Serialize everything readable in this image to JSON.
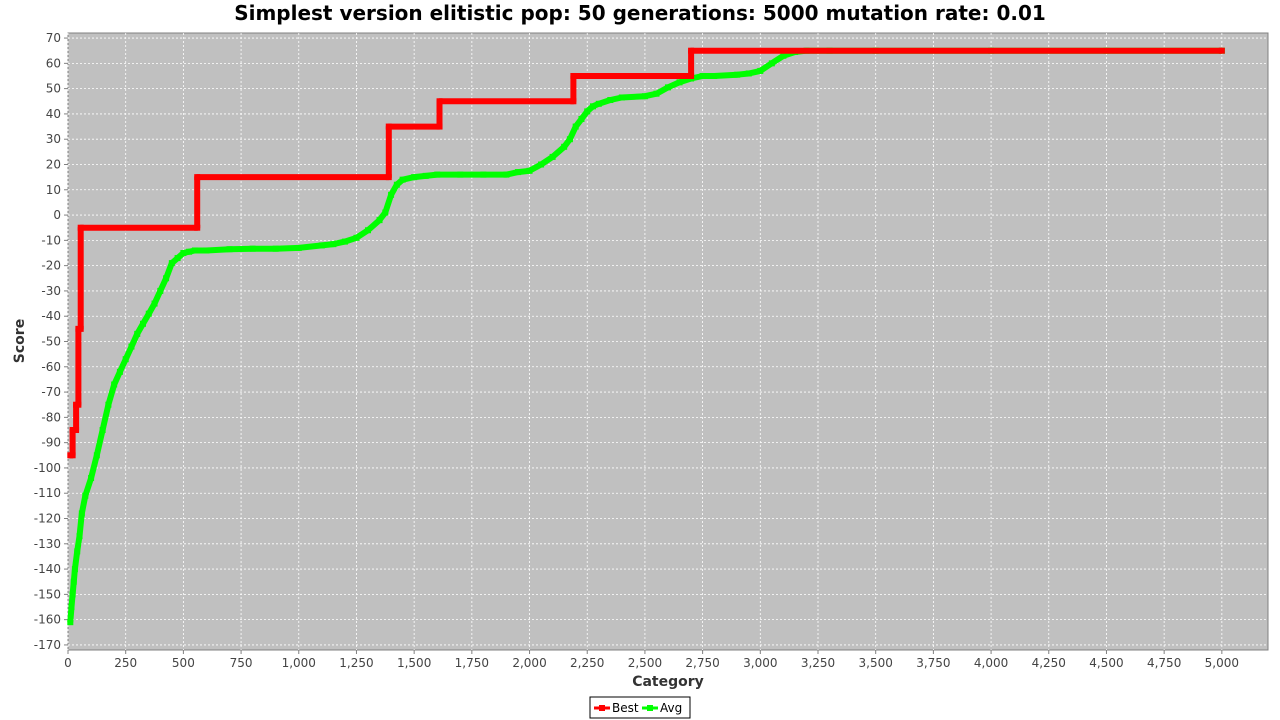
{
  "chart_data": {
    "type": "line",
    "title": "Simplest version elitistic pop: 50 generations: 5000 mutation rate: 0.01",
    "xlabel": "Category",
    "ylabel": "Score",
    "xlim": [
      0,
      5200
    ],
    "ylim": [
      -172,
      72
    ],
    "xticks": [
      0,
      250,
      500,
      750,
      1000,
      1250,
      1500,
      1750,
      2000,
      2250,
      2500,
      2750,
      3000,
      3250,
      3500,
      3750,
      4000,
      4250,
      4500,
      4750,
      5000
    ],
    "xtick_labels": [
      "0",
      "250",
      "500",
      "750",
      "1,000",
      "1,250",
      "1,500",
      "1,750",
      "2,000",
      "2,250",
      "2,500",
      "2,750",
      "3,000",
      "3,250",
      "3,500",
      "3,750",
      "4,000",
      "4,250",
      "4,500",
      "4,750",
      "5,000"
    ],
    "yticks": [
      -170,
      -160,
      -150,
      -140,
      -130,
      -120,
      -110,
      -100,
      -90,
      -80,
      -70,
      -60,
      -50,
      -40,
      -30,
      -20,
      -10,
      0,
      10,
      20,
      30,
      40,
      50,
      60,
      70
    ],
    "grid": true,
    "legend_position": "bottom",
    "background": "#c0c0c0",
    "series": [
      {
        "name": "Best",
        "color": "#ff0000",
        "x": [
          10,
          20,
          20,
          35,
          35,
          45,
          45,
          55,
          55,
          560,
          560,
          1390,
          1390,
          1610,
          1610,
          2190,
          2190,
          2700,
          2700,
          5000
        ],
        "y": [
          -95,
          -95,
          -85,
          -85,
          -75,
          -75,
          -45,
          -45,
          -5,
          -5,
          15,
          15,
          35,
          35,
          45,
          45,
          55,
          55,
          65,
          65
        ]
      },
      {
        "name": "Avg",
        "color": "#00ff00",
        "x": [
          10,
          15,
          20,
          25,
          30,
          40,
          50,
          60,
          75,
          100,
          125,
          150,
          175,
          200,
          225,
          250,
          275,
          300,
          325,
          350,
          375,
          400,
          425,
          450,
          475,
          500,
          525,
          550,
          600,
          700,
          800,
          900,
          1000,
          1100,
          1150,
          1200,
          1250,
          1300,
          1350,
          1375,
          1400,
          1425,
          1450,
          1500,
          1550,
          1600,
          1700,
          1800,
          1900,
          1950,
          2000,
          2050,
          2100,
          2150,
          2175,
          2200,
          2225,
          2250,
          2275,
          2300,
          2350,
          2400,
          2500,
          2550,
          2600,
          2650,
          2700,
          2750,
          2800,
          2900,
          2950,
          3000,
          3050,
          3100,
          3150,
          3200,
          3300,
          3500,
          4000,
          4500,
          5000
        ],
        "y": [
          -161,
          -155,
          -150,
          -145,
          -140,
          -133,
          -127,
          -118,
          -111,
          -104,
          -95,
          -85,
          -75,
          -67,
          -62,
          -57,
          -52,
          -47,
          -43,
          -39,
          -35,
          -30,
          -25,
          -19,
          -17,
          -15,
          -14.5,
          -14,
          -14,
          -13.5,
          -13.3,
          -13.3,
          -13,
          -12,
          -11.5,
          -10.5,
          -9,
          -6,
          -2,
          1,
          8,
          12,
          14,
          15,
          15.5,
          16,
          16,
          16,
          16,
          17,
          17.5,
          20,
          23,
          27,
          30,
          35,
          38,
          41,
          43,
          44,
          45.5,
          46.5,
          47,
          48,
          50.5,
          52.5,
          54,
          55,
          55,
          55.5,
          56,
          57,
          60,
          63,
          64.5,
          65,
          65,
          65,
          65,
          65,
          65
        ]
      }
    ]
  }
}
